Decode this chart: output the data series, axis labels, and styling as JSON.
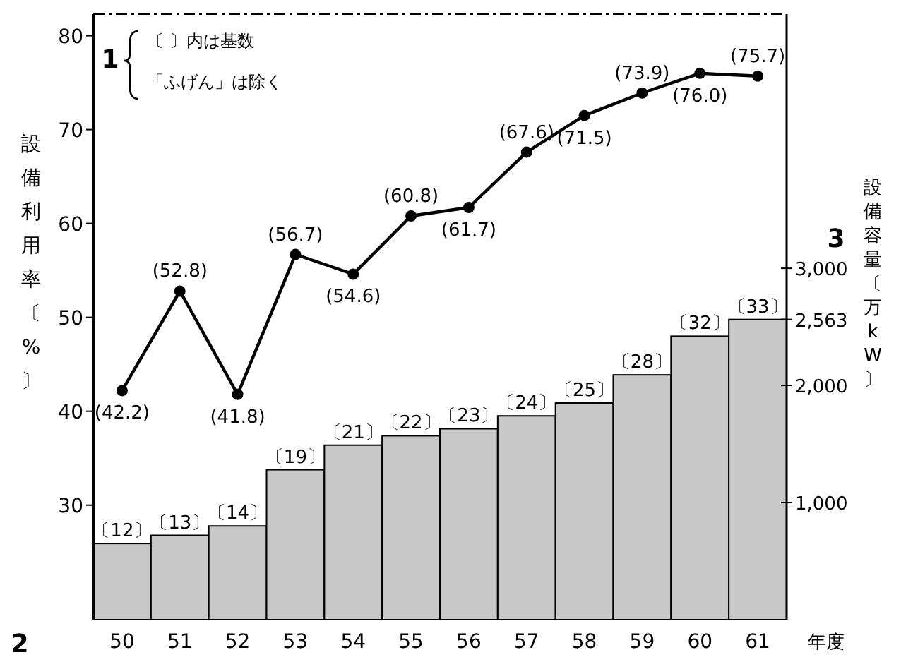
{
  "chart_data": {
    "type": "line",
    "xlabel": "年度",
    "ylabel": "設備利用率〔%〕",
    "y2label": "設備容量〔万kW〕",
    "annotations": [
      "1",
      "〔 〕内は基数",
      "「ふげん」は除く",
      "2",
      "3",
      "〔12〕",
      "〔13〕",
      "〔14〕",
      "〔19〕",
      "〔21〕",
      "〔22〕",
      "〔23〕",
      "〔24〕",
      "〔25〕",
      "〔28〕",
      "〔32〕",
      "〔33〕"
    ],
    "categories": [
      "50",
      "51",
      "52",
      "53",
      "54",
      "55",
      "56",
      "57",
      "58",
      "59",
      "60",
      "61"
    ],
    "ylim": [
      17.8,
      82.3
    ],
    "yticks": [
      30,
      40,
      50,
      60,
      70,
      80
    ],
    "y2lim": [
      0,
      5170
    ],
    "y2ticks": [
      {
        "value": 1000,
        "label": "1,000"
      },
      {
        "value": 2000,
        "label": "2,000"
      },
      {
        "value": 2563,
        "label": "2,563"
      },
      {
        "value": 3000,
        "label": "3,000"
      }
    ],
    "marker": "circle",
    "series": [
      {
        "type": "bar",
        "axis": "y2",
        "color": "#c8c8c8",
        "values": [
          650,
          720,
          800,
          1280,
          1490,
          1570,
          1630,
          1740,
          1850,
          2090,
          2420,
          2563
        ]
      },
      {
        "color": "#000000",
        "values": [
          42.2,
          52.8,
          41.8,
          56.7,
          54.6,
          60.8,
          61.7,
          67.6,
          71.5,
          73.9,
          76.0,
          75.7
        ],
        "value_labels": [
          "(42.2)",
          "(52.8)",
          "(41.8)",
          "(56.7)",
          "(54.6)",
          "(60.8)",
          "(61.7)",
          "(67.6)",
          "(71.5)",
          "(73.9)",
          "(76.0)",
          "(75.7)"
        ]
      }
    ]
  }
}
